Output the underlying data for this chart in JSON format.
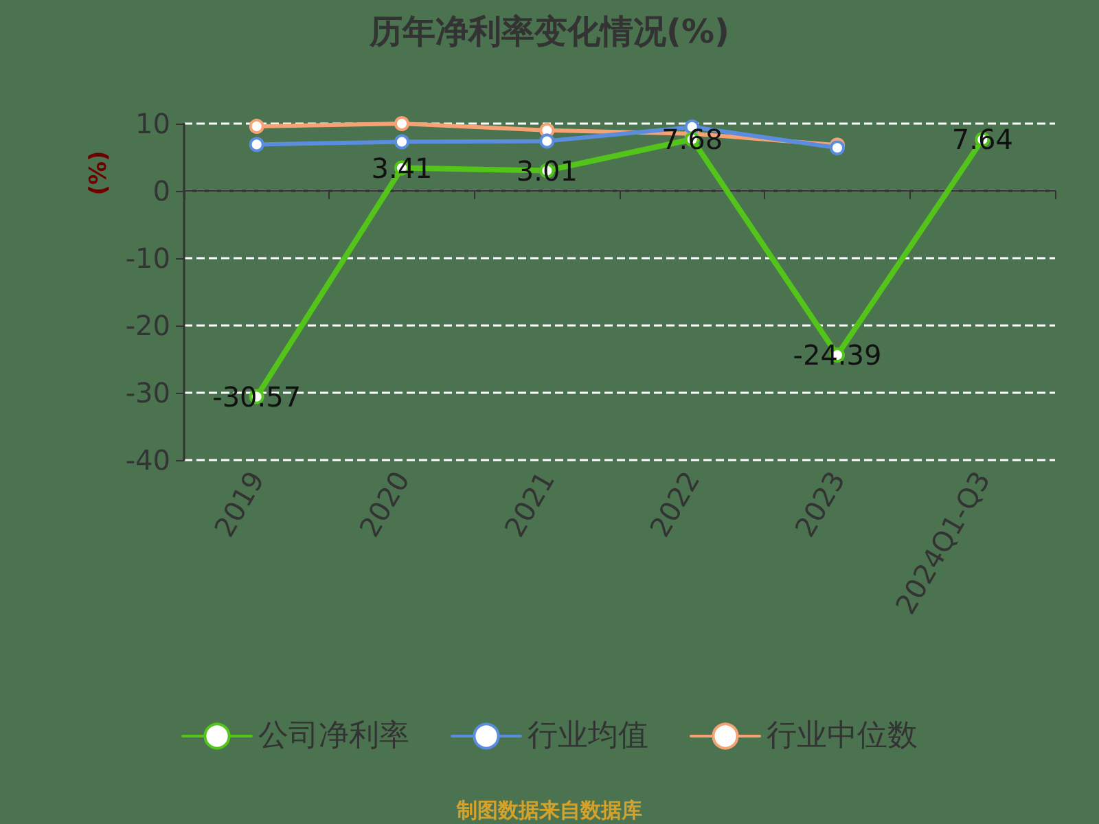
{
  "chart_data": {
    "type": "line",
    "title": "历年净利率变化情况(%)",
    "ylabel": "(%)",
    "categories": [
      "2019",
      "2020",
      "2021",
      "2022",
      "2023",
      "2024Q1-Q3"
    ],
    "series": [
      {
        "name": "公司净利率",
        "color": "#52c41a",
        "values": [
          -30.57,
          3.41,
          3.01,
          7.68,
          -24.39,
          7.64
        ],
        "value_labels": [
          "-30.57",
          "3.41",
          "3.01",
          "7.68",
          "-24.39",
          "7.64"
        ]
      },
      {
        "name": "行业均值",
        "color": "#5b8ddf",
        "values": [
          6.9,
          7.3,
          7.4,
          9.5,
          6.4,
          null
        ]
      },
      {
        "name": "行业中位数",
        "color": "#f5a275",
        "values": [
          9.6,
          10,
          9.0,
          8.5,
          6.8,
          null
        ]
      }
    ],
    "ylim": [
      -40,
      10
    ],
    "yticks": [
      -40,
      -30,
      -20,
      -10,
      0,
      10
    ],
    "grid": "y",
    "legend": "bottom",
    "marker": "circle",
    "annotations": [
      "制图数据来自数据库"
    ]
  }
}
